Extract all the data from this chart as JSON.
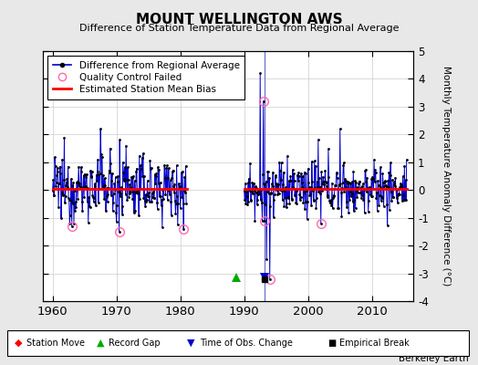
{
  "title": "MOUNT WELLINGTON AWS",
  "subtitle": "Difference of Station Temperature Data from Regional Average",
  "ylabel": "Monthly Temperature Anomaly Difference (°C)",
  "xlim": [
    1958.5,
    2016.5
  ],
  "ylim": [
    -4,
    5
  ],
  "yticks": [
    -4,
    -3,
    -2,
    -1,
    0,
    1,
    2,
    3,
    4,
    5
  ],
  "xticks": [
    1960,
    1970,
    1980,
    1990,
    2000,
    2010
  ],
  "bias_y": 0.05,
  "seg1_xmin": 1960.0,
  "seg1_xmax": 1981.0,
  "seg2_xmin": 1990.0,
  "seg2_xmax": 2015.5,
  "gap_start": 1981.0,
  "gap_end": 1990.0,
  "record_gap_x": 1988.8,
  "record_gap_y": -3.15,
  "time_obs_x": 1993.2,
  "time_obs_y": -3.15,
  "empirical_break_x": 1993.2,
  "background_color": "#e8e8e8",
  "plot_bg_color": "#ffffff",
  "line_color": "#0000cc",
  "dot_color": "#000000",
  "bias_color": "#ff0000",
  "qc_color": "#ff69b4",
  "grid_color": "#cccccc",
  "berkeley_earth_text": "Berkeley Earth",
  "seed": 12345
}
